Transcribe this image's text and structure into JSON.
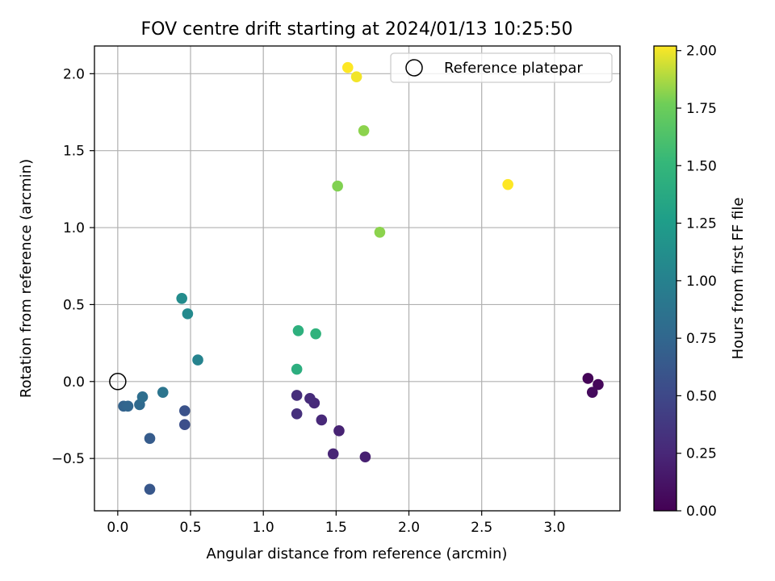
{
  "chart_data": {
    "type": "scatter",
    "title": "FOV centre drift starting at 2024/01/13 10:25:50",
    "xlabel": "Angular distance from reference (arcmin)",
    "ylabel": "Rotation from reference (arcmin)",
    "xlim": [
      -0.16,
      3.45
    ],
    "ylim": [
      -0.84,
      2.18
    ],
    "xticks": [
      0.0,
      0.5,
      1.0,
      1.5,
      2.0,
      2.5,
      3.0
    ],
    "xtick_labels": [
      "0.0",
      "0.5",
      "1.0",
      "1.5",
      "2.0",
      "2.5",
      "3.0"
    ],
    "yticks": [
      -0.5,
      0.0,
      0.5,
      1.0,
      1.5,
      2.0
    ],
    "ytick_labels": [
      "−0.5",
      "0.0",
      "0.5",
      "1.0",
      "1.5",
      "2.0"
    ],
    "grid": true,
    "legend": {
      "position": "top-right",
      "entries": [
        "Reference platepar"
      ]
    },
    "reference_point": {
      "x": 0.0,
      "y": 0.0
    },
    "colorbar": {
      "label": "Hours from first FF file",
      "colormap": "viridis",
      "range": [
        0.0,
        2.02
      ],
      "ticks": [
        0.0,
        0.25,
        0.5,
        0.75,
        1.0,
        1.25,
        1.5,
        1.75,
        2.0
      ],
      "tick_labels": [
        "0.00",
        "0.25",
        "0.50",
        "0.75",
        "1.00",
        "1.25",
        "1.50",
        "1.75",
        "2.00"
      ]
    },
    "points": [
      {
        "x": 3.23,
        "y": 0.02,
        "c": 0.02
      },
      {
        "x": 3.3,
        "y": -0.02,
        "c": 0.04
      },
      {
        "x": 3.26,
        "y": -0.07,
        "c": 0.06
      },
      {
        "x": 1.7,
        "y": -0.49,
        "c": 0.2
      },
      {
        "x": 1.52,
        "y": -0.32,
        "c": 0.22
      },
      {
        "x": 1.48,
        "y": -0.47,
        "c": 0.24
      },
      {
        "x": 1.4,
        "y": -0.25,
        "c": 0.26
      },
      {
        "x": 1.35,
        "y": -0.14,
        "c": 0.27
      },
      {
        "x": 1.32,
        "y": -0.11,
        "c": 0.28
      },
      {
        "x": 1.23,
        "y": -0.09,
        "c": 0.3
      },
      {
        "x": 1.23,
        "y": -0.21,
        "c": 0.31
      },
      {
        "x": 0.46,
        "y": -0.28,
        "c": 0.55
      },
      {
        "x": 0.46,
        "y": -0.19,
        "c": 0.58
      },
      {
        "x": 0.22,
        "y": -0.7,
        "c": 0.62
      },
      {
        "x": 0.22,
        "y": -0.37,
        "c": 0.66
      },
      {
        "x": 0.04,
        "y": -0.16,
        "c": 0.72
      },
      {
        "x": 0.07,
        "y": -0.16,
        "c": 0.74
      },
      {
        "x": 0.15,
        "y": -0.15,
        "c": 0.78
      },
      {
        "x": 0.17,
        "y": -0.1,
        "c": 0.82
      },
      {
        "x": 0.31,
        "y": -0.07,
        "c": 0.88
      },
      {
        "x": 0.55,
        "y": 0.14,
        "c": 1.02
      },
      {
        "x": 0.48,
        "y": 0.44,
        "c": 1.08
      },
      {
        "x": 0.44,
        "y": 0.54,
        "c": 1.1
      },
      {
        "x": 1.23,
        "y": 0.08,
        "c": 1.42
      },
      {
        "x": 1.24,
        "y": 0.33,
        "c": 1.44
      },
      {
        "x": 1.36,
        "y": 0.31,
        "c": 1.46
      },
      {
        "x": 1.8,
        "y": 0.97,
        "c": 1.82
      },
      {
        "x": 1.51,
        "y": 1.27,
        "c": 1.8
      },
      {
        "x": 1.69,
        "y": 1.63,
        "c": 1.82
      },
      {
        "x": 1.64,
        "y": 1.98,
        "c": 2.0
      },
      {
        "x": 1.58,
        "y": 2.04,
        "c": 2.02
      },
      {
        "x": 2.68,
        "y": 1.28,
        "c": 2.02
      }
    ]
  }
}
